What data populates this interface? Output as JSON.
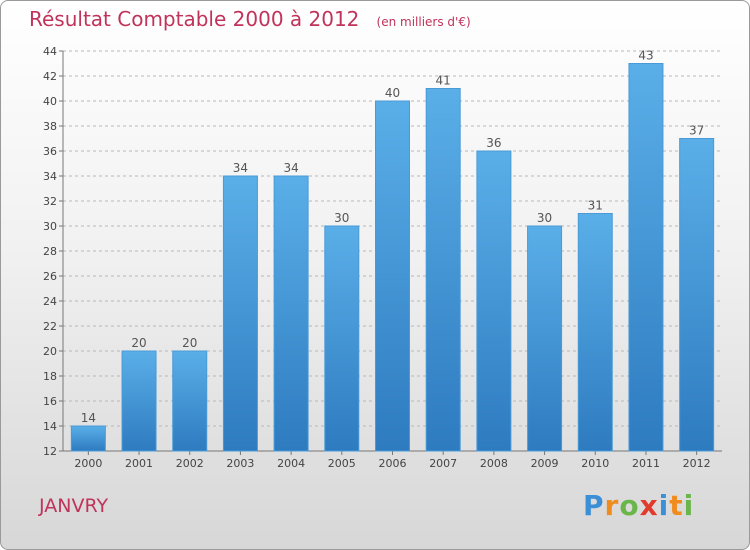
{
  "header": {
    "title": "Résultat Comptable 2000 à 2012",
    "subtitle": "(en milliers d'€)"
  },
  "location": {
    "name": "JANVRY"
  },
  "logo": {
    "letters": [
      {
        "ch": "P",
        "color": "#3a8fd6"
      },
      {
        "ch": "r",
        "color": "#f08c1e"
      },
      {
        "ch": "o",
        "color": "#6ab64b"
      },
      {
        "ch": "x",
        "color": "#e23b2e"
      },
      {
        "ch": "i",
        "color": "#3a8fd6"
      },
      {
        "ch": "t",
        "color": "#f08c1e"
      },
      {
        "ch": "i",
        "color": "#6ab64b"
      }
    ]
  },
  "chart_data": {
    "type": "bar",
    "title": "Résultat Comptable 2000 à 2012",
    "subtitle": "(en milliers d'€)",
    "categories": [
      "2000",
      "2001",
      "2002",
      "2003",
      "2004",
      "2005",
      "2006",
      "2007",
      "2008",
      "2009",
      "2010",
      "2011",
      "2012"
    ],
    "values": [
      14,
      20,
      20,
      34,
      34,
      30,
      40,
      41,
      36,
      30,
      31,
      43,
      37
    ],
    "ylim": [
      12,
      44
    ],
    "yticks": [
      12,
      14,
      16,
      18,
      20,
      22,
      24,
      26,
      28,
      30,
      32,
      34,
      36,
      38,
      40,
      42,
      44
    ],
    "grid": true,
    "colors": {
      "bar_top": "#5aafe8",
      "bar_bottom": "#2e7bc0",
      "bar_edge": "#4a9ad8",
      "label": "#555555",
      "grid": "#b8b8b8"
    }
  }
}
